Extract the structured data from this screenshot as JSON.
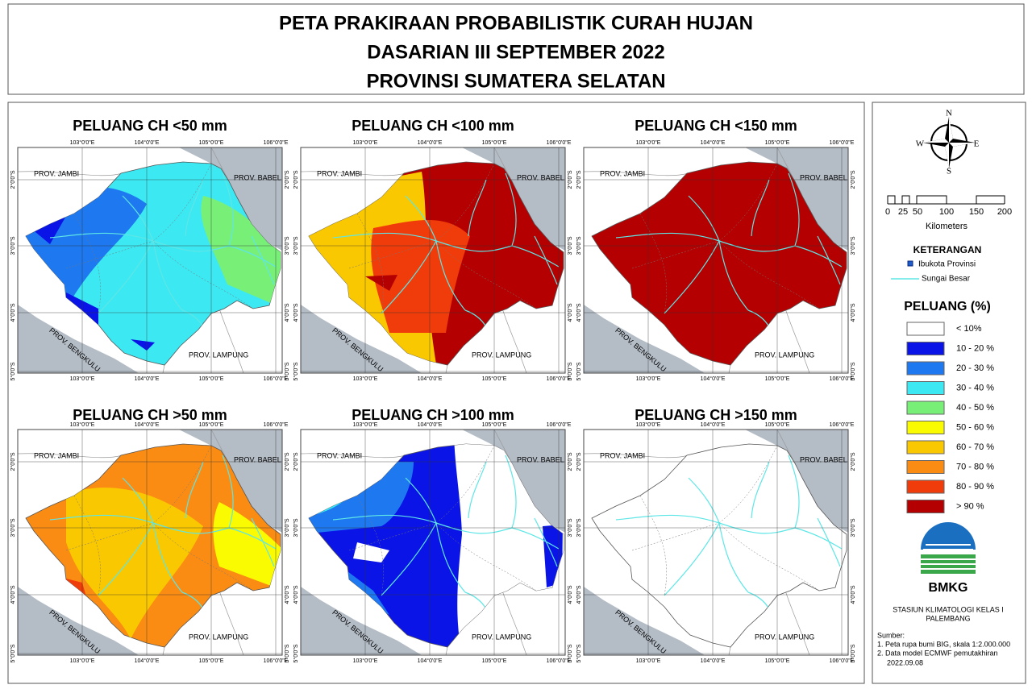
{
  "header": {
    "lines": [
      "PETA PRAKIRAAN PROBABILISTIK CURAH HUJAN",
      "DASARIAN III SEPTEMBER 2022",
      "PROVINSI SUMATERA SELATAN"
    ]
  },
  "panels": [
    {
      "title": "PELUANG CH <50 mm"
    },
    {
      "title": "PELUANG CH <100 mm"
    },
    {
      "title": "PELUANG CH <150 mm"
    },
    {
      "title": "PELUANG CH >50 mm"
    },
    {
      "title": "PELUANG CH >100 mm"
    },
    {
      "title": "PELUANG CH >150 mm"
    }
  ],
  "map_labels": {
    "provinces": [
      "PROV. JAMBI",
      "PROV. BABEL",
      "PROV. BENGKULU",
      "PROV. LAMPUNG"
    ],
    "lon_ticks": [
      "103°0'0\"E",
      "104°0'0\"E",
      "105°0'0\"E",
      "106°0'0\"E"
    ],
    "lat_ticks": [
      "2°0'0\"S",
      "3°0'0\"S",
      "4°0'0\"S",
      "5°0'0\"S"
    ]
  },
  "legend": {
    "compass": [
      "N",
      "E",
      "S",
      "W"
    ],
    "scale": {
      "ticks": [
        "0",
        "25",
        "50",
        "100",
        "150",
        "200"
      ],
      "unit": "Kilometers"
    },
    "keterangan": {
      "title": "KETERANGAN",
      "items": [
        "Ibukota Provinsi",
        "Sungai Besar"
      ]
    },
    "peluang": {
      "title": "PELUANG (%)",
      "classes": [
        {
          "label": "< 10%",
          "color": "#ffffff"
        },
        {
          "label": "10 - 20 %",
          "color": "#0a14e6"
        },
        {
          "label": "20 - 30 %",
          "color": "#1e78f0"
        },
        {
          "label": "30 - 40 %",
          "color": "#3ce8f2"
        },
        {
          "label": "40 - 50 %",
          "color": "#78f078"
        },
        {
          "label": "50 - 60 %",
          "color": "#fafa00"
        },
        {
          "label": "60 - 70 %",
          "color": "#fac800"
        },
        {
          "label": "70 - 80 %",
          "color": "#fa8c14"
        },
        {
          "label": "80 - 90 %",
          "color": "#f03c0a"
        },
        {
          "label": "> 90 %",
          "color": "#b40000"
        }
      ]
    },
    "logo": "BMKG",
    "station": [
      "STASIUN KLIMATOLOGI KELAS I",
      "PALEMBANG"
    ],
    "sources": {
      "title": "Sumber:",
      "items": [
        "1. Peta rupa bumi BIG, skala 1:2.000.000",
        "2. Data model ECMWF pemutakhiran",
        "2022.09.08"
      ]
    }
  }
}
